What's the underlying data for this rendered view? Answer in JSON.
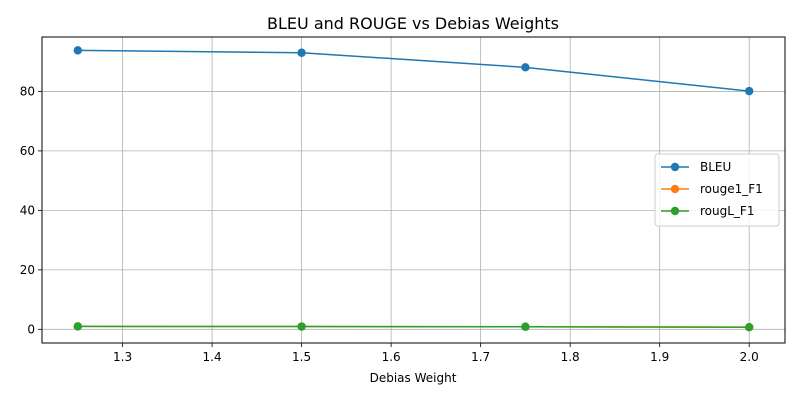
{
  "chart_data": {
    "type": "line",
    "title": "BLEU and ROUGE vs Debias Weights",
    "xlabel": "Debias Weight",
    "ylabel": "",
    "x": [
      1.25,
      1.5,
      1.75,
      2.0
    ],
    "xlim": [
      1.21,
      2.04
    ],
    "ylim": [
      -4.6,
      98.3
    ],
    "xticks": [
      1.3,
      1.4,
      1.5,
      1.6,
      1.7,
      1.8,
      1.9,
      2.0
    ],
    "xtick_labels": [
      "1.3",
      "1.4",
      "1.5",
      "1.6",
      "1.7",
      "1.8",
      "1.9",
      "2.0"
    ],
    "yticks": [
      0,
      20,
      40,
      60,
      80
    ],
    "ytick_labels": [
      "0",
      "20",
      "40",
      "60",
      "80"
    ],
    "grid": true,
    "legend_position": "center-right",
    "series": [
      {
        "name": "BLEU",
        "color": "#1f77b4",
        "values": [
          93.8,
          93.0,
          88.1,
          80.1
        ]
      },
      {
        "name": "rouge1_F1",
        "color": "#ff7f0e",
        "values": [
          0.99,
          0.94,
          0.88,
          0.72
        ]
      },
      {
        "name": "rougL_F1",
        "color": "#2ca02c",
        "values": [
          0.98,
          0.93,
          0.87,
          0.71
        ]
      }
    ]
  }
}
